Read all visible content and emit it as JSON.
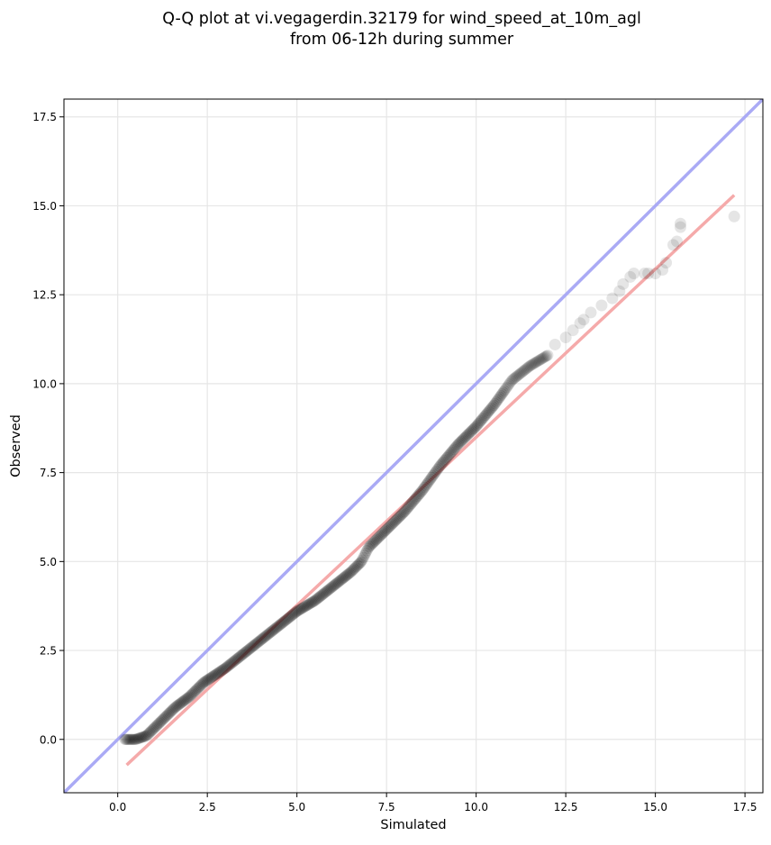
{
  "chart_data": {
    "type": "scatter",
    "title": "Q-Q plot at vi.vegagerdin.32179 for wind_speed_at_10m_agl",
    "subtitle": "from 06-12h during summer",
    "xlabel": "Simulated",
    "ylabel": "Observed",
    "xlim": [
      -1.5,
      18.0
    ],
    "ylim": [
      -1.5,
      18.0
    ],
    "xticks": [
      0.0,
      2.5,
      5.0,
      7.5,
      10.0,
      12.5,
      15.0,
      17.5
    ],
    "xtick_labels": [
      "0.0",
      "2.5",
      "5.0",
      "7.5",
      "10.0",
      "12.5",
      "15.0",
      "17.5"
    ],
    "yticks": [
      0.0,
      2.5,
      5.0,
      7.5,
      10.0,
      12.5,
      15.0,
      17.5
    ],
    "ytick_labels": [
      "0.0",
      "2.5",
      "5.0",
      "7.5",
      "10.0",
      "12.5",
      "15.0",
      "17.5"
    ],
    "grid": true,
    "colors": {
      "identity_line": "#aaaaf5",
      "fit_line": "#f5aaaa",
      "points": "#000000"
    },
    "identity_line": {
      "x": [
        -1.5,
        18.0
      ],
      "y": [
        -1.5,
        18.0
      ]
    },
    "fit_line": {
      "x": [
        0.25,
        17.2
      ],
      "y": [
        -0.72,
        15.3
      ]
    },
    "quantile_curve": {
      "x": [
        0.2,
        0.5,
        0.8,
        1.0,
        1.3,
        1.6,
        2.0,
        2.4,
        2.7,
        3.0,
        3.5,
        4.0,
        4.5,
        5.0,
        5.5,
        6.0,
        6.5,
        6.8,
        7.0,
        7.5,
        8.0,
        8.5,
        9.0,
        9.5,
        10.0,
        10.5,
        11.0,
        11.5,
        12.0
      ],
      "y": [
        0.0,
        0.0,
        0.1,
        0.3,
        0.6,
        0.9,
        1.2,
        1.6,
        1.8,
        2.0,
        2.4,
        2.8,
        3.2,
        3.6,
        3.9,
        4.3,
        4.7,
        5.0,
        5.4,
        5.9,
        6.4,
        7.0,
        7.7,
        8.3,
        8.8,
        9.4,
        10.1,
        10.5,
        10.8
      ]
    },
    "tail_points": {
      "x": [
        12.2,
        12.5,
        12.7,
        12.9,
        13.0,
        13.2,
        13.5,
        13.8,
        14.0,
        14.1,
        14.3,
        14.4,
        14.7,
        14.8,
        15.0,
        15.2,
        15.3,
        15.5,
        15.6,
        15.7,
        15.7,
        17.2
      ],
      "y": [
        11.1,
        11.3,
        11.5,
        11.7,
        11.8,
        12.0,
        12.2,
        12.4,
        12.6,
        12.8,
        13.0,
        13.1,
        13.1,
        13.1,
        13.1,
        13.2,
        13.4,
        13.9,
        14.0,
        14.4,
        14.5,
        14.7
      ]
    }
  }
}
